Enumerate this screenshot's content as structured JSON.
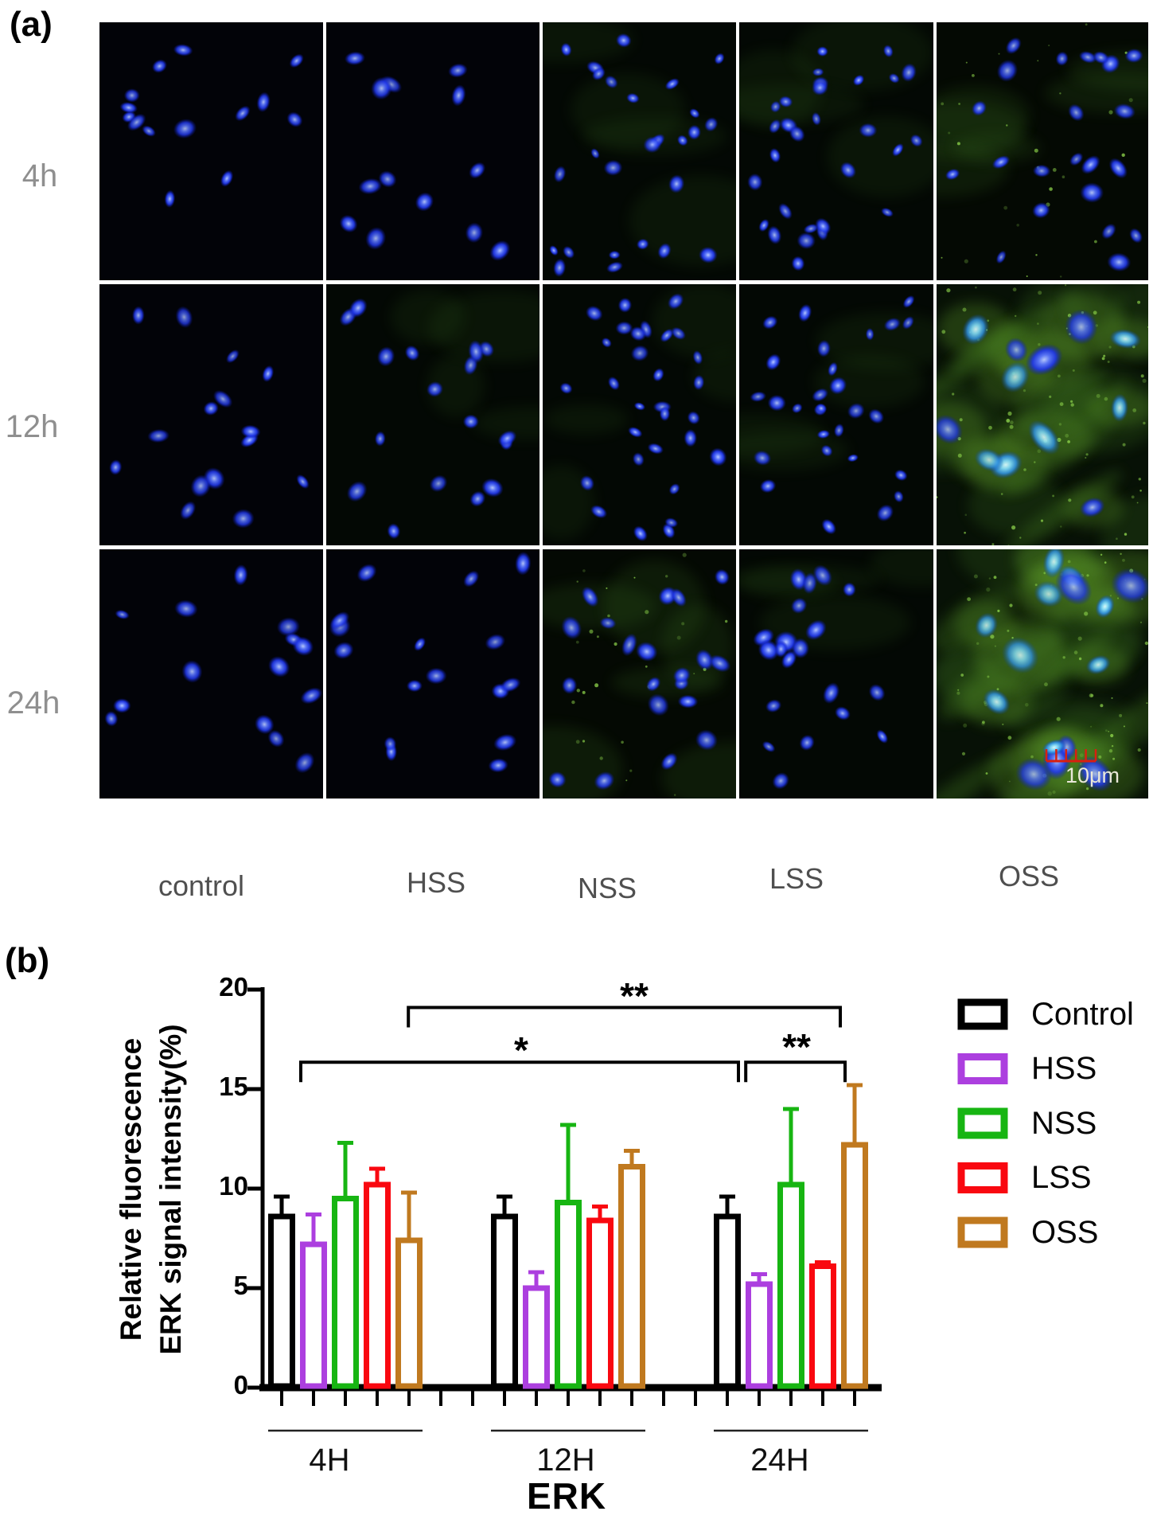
{
  "panel_a": {
    "label": "(a)",
    "row_labels": [
      "4h",
      "12h",
      "24h"
    ],
    "col_labels": [
      "control",
      "HSS",
      "NSS",
      "LSS",
      "OSS"
    ],
    "scale_bar_label": "10μm",
    "scale_bar_color": "#d81f10",
    "stain_colors": {
      "nucleus_blue": "#2b46f2",
      "signal_green": "#5a9428"
    },
    "tiles": [
      {
        "row": 0,
        "col": 0,
        "nuclei": 14,
        "green": 0,
        "big": false,
        "scalebar": false
      },
      {
        "row": 0,
        "col": 1,
        "nuclei": 13,
        "green": 0,
        "big": false,
        "scalebar": false
      },
      {
        "row": 0,
        "col": 2,
        "nuclei": 26,
        "green": 1,
        "big": false,
        "scalebar": false
      },
      {
        "row": 0,
        "col": 3,
        "nuclei": 30,
        "green": 1,
        "big": false,
        "scalebar": false
      },
      {
        "row": 0,
        "col": 4,
        "nuclei": 22,
        "green": 2,
        "big": false,
        "scalebar": false
      },
      {
        "row": 1,
        "col": 0,
        "nuclei": 15,
        "green": 0,
        "big": false,
        "scalebar": false
      },
      {
        "row": 1,
        "col": 1,
        "nuclei": 17,
        "green": 1,
        "big": false,
        "scalebar": false
      },
      {
        "row": 1,
        "col": 2,
        "nuclei": 30,
        "green": 1,
        "big": false,
        "scalebar": false
      },
      {
        "row": 1,
        "col": 3,
        "nuclei": 28,
        "green": 1,
        "big": false,
        "scalebar": false
      },
      {
        "row": 1,
        "col": 4,
        "nuclei": 12,
        "green": 3,
        "big": true,
        "scalebar": false
      },
      {
        "row": 2,
        "col": 0,
        "nuclei": 14,
        "green": 0,
        "big": false,
        "scalebar": false
      },
      {
        "row": 2,
        "col": 1,
        "nuclei": 16,
        "green": 0,
        "big": false,
        "scalebar": false
      },
      {
        "row": 2,
        "col": 2,
        "nuclei": 20,
        "green": 2,
        "big": false,
        "scalebar": false
      },
      {
        "row": 2,
        "col": 3,
        "nuclei": 20,
        "green": 1,
        "big": false,
        "scalebar": false
      },
      {
        "row": 2,
        "col": 4,
        "nuclei": 15,
        "green": 3,
        "big": true,
        "scalebar": true
      }
    ]
  },
  "panel_b": {
    "label": "(b)"
  },
  "chart_data": {
    "type": "bar",
    "title": "",
    "xlabel": "ERK",
    "ylabel_lines": [
      "Relative fluorescence",
      "ERK signal intensity(%)"
    ],
    "ylim": [
      0,
      20
    ],
    "yticks": [
      "0",
      "5",
      "10",
      "15",
      "20"
    ],
    "grid": false,
    "legend_position": "right",
    "groups": [
      "4H",
      "12H",
      "24H"
    ],
    "series": [
      {
        "name": "Control",
        "color": "#000000",
        "values": [
          8.6,
          8.6,
          8.6
        ],
        "errors": [
          1.0,
          1.0,
          1.0
        ]
      },
      {
        "name": "HSS",
        "color": "#AC3FDF",
        "values": [
          7.2,
          5.0,
          5.2
        ],
        "errors": [
          1.5,
          0.8,
          0.5
        ]
      },
      {
        "name": "NSS",
        "color": "#17B512",
        "values": [
          9.5,
          9.3,
          10.2
        ],
        "errors": [
          2.8,
          3.9,
          3.8
        ]
      },
      {
        "name": "LSS",
        "color": "#F90810",
        "values": [
          10.2,
          8.4,
          6.1
        ],
        "errors": [
          0.8,
          0.7,
          0.2
        ]
      },
      {
        "name": "OSS",
        "color": "#C0791F",
        "values": [
          7.4,
          11.1,
          12.2
        ],
        "errors": [
          2.4,
          0.8,
          3.0
        ]
      }
    ],
    "legend": [
      "Control",
      "HSS",
      "NSS",
      "LSS",
      "OSS"
    ],
    "significance": [
      {
        "label": "**",
        "x1_slot": 3.98,
        "x2_slot": 17.55,
        "y_value": 19.1
      },
      {
        "label": "*",
        "x1_slot": 0.6,
        "x2_slot": 14.35,
        "y_value": 16.35
      },
      {
        "label": "**",
        "x1_slot": 14.58,
        "x2_slot": 17.7,
        "y_value": 16.35
      }
    ]
  }
}
